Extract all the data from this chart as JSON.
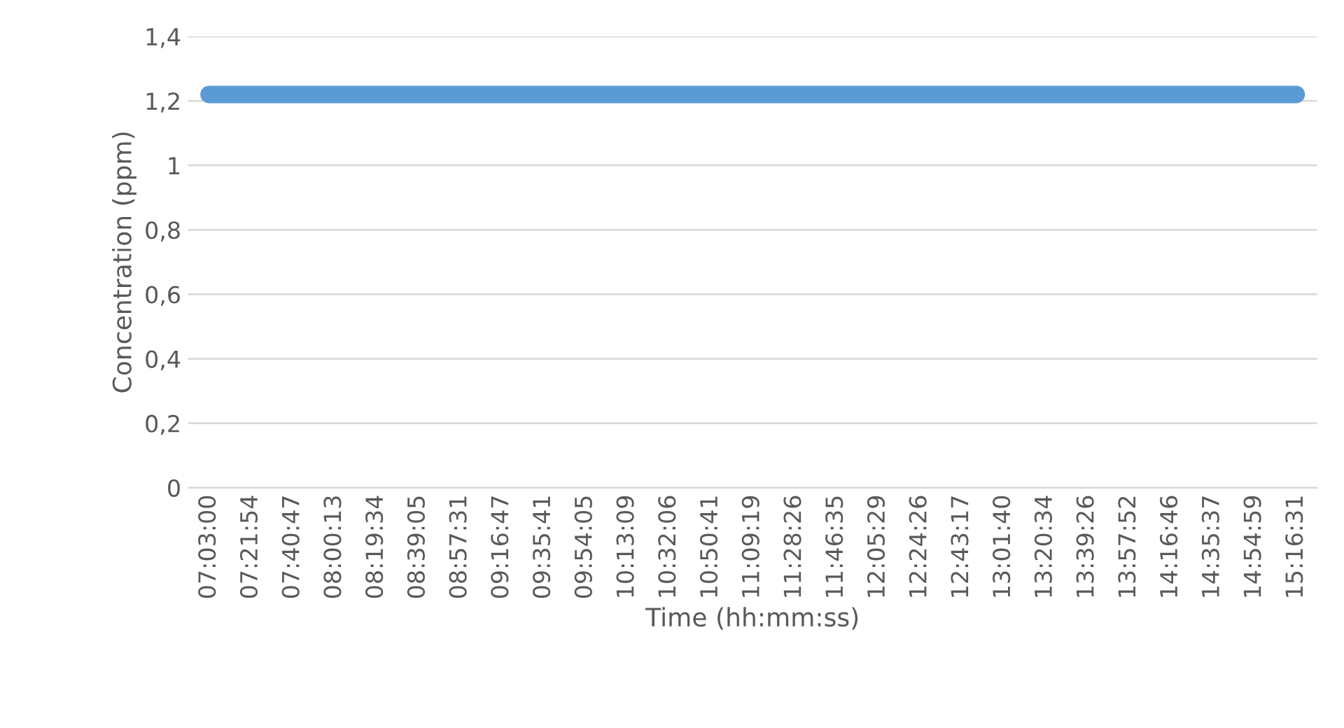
{
  "chart_data": {
    "type": "line",
    "xlabel": "Time (hh:mm:ss)",
    "ylabel": "Concentration (ppm)",
    "categories": [
      "07:03:00",
      "07:21:54",
      "07:40:47",
      "08:00:13",
      "08:19:34",
      "08:39:05",
      "08:57:31",
      "09:16:47",
      "09:35:41",
      "09:54:05",
      "10:13:09",
      "10:32:06",
      "10:50:41",
      "11:09:19",
      "11:28:26",
      "11:46:35",
      "12:05:29",
      "12:24:26",
      "12:43:17",
      "13:01:40",
      "13:20:34",
      "13:39:26",
      "13:57:52",
      "14:16:46",
      "14:35:37",
      "14:54:59",
      "15:16:31"
    ],
    "series": [
      {
        "color": "#5b9bd5",
        "values": [
          1.22,
          1.22,
          1.22,
          1.22,
          1.22,
          1.22,
          1.22,
          1.22,
          1.22,
          1.22,
          1.22,
          1.22,
          1.22,
          1.22,
          1.22,
          1.22,
          1.22,
          1.22,
          1.22,
          1.22,
          1.22,
          1.22,
          1.22,
          1.22,
          1.22,
          1.22,
          1.22
        ]
      }
    ],
    "ylim": [
      0,
      1.4
    ],
    "yticks": [
      0,
      {
        "value": 0.2,
        "label": "0,2"
      },
      {
        "value": 0.4,
        "label": "0,4"
      },
      {
        "value": 0.6,
        "label": "0,6"
      },
      {
        "value": 0.8,
        "label": "0,8"
      },
      1,
      {
        "value": 1.2,
        "label": "1,2"
      },
      {
        "value": 1.4,
        "label": "1,4"
      }
    ],
    "grid": "y",
    "legend": false,
    "marker": "none",
    "line_style": "solid"
  }
}
